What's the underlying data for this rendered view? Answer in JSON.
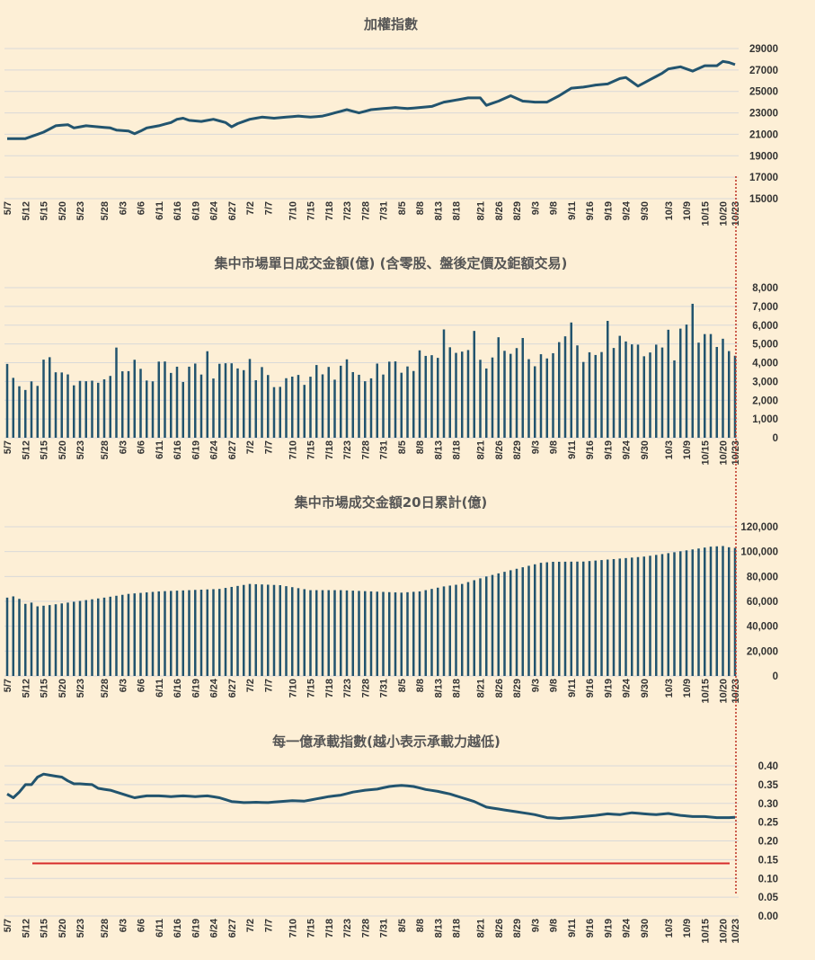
{
  "colors": {
    "background": "#FDEFD6",
    "series": "#22546E",
    "reference_line": "#D62B2B",
    "vertical_marker": "#C0392B",
    "grid": "#D9D9D9"
  },
  "x_labels": [
    "5/7",
    "5/12",
    "5/15",
    "5/20",
    "5/23",
    "5/28",
    "6/3",
    "6/6",
    "6/11",
    "6/16",
    "6/19",
    "6/24",
    "6/27",
    "7/2",
    "7/7",
    "7/10",
    "7/15",
    "7/18",
    "7/23",
    "7/28",
    "7/31",
    "8/5",
    "8/8",
    "8/13",
    "8/18",
    "8/21",
    "8/26",
    "8/29",
    "9/3",
    "9/8",
    "9/11",
    "9/16",
    "9/19",
    "9/24",
    "9/30",
    "10/3",
    "10/9",
    "10/15",
    "10/20",
    "10/23"
  ],
  "chart_data": [
    {
      "type": "line",
      "title": "加權指數",
      "ylim": [
        15000,
        29000
      ],
      "y_ticks": [
        "15000",
        "17000",
        "19000",
        "21000",
        "23000",
        "25000",
        "27000",
        "29000"
      ],
      "grid": true,
      "anchors": [
        [
          0,
          20600
        ],
        [
          3,
          20600
        ],
        [
          6,
          21200
        ],
        [
          8,
          21800
        ],
        [
          10,
          21900
        ],
        [
          11,
          21600
        ],
        [
          13,
          21800
        ],
        [
          15,
          21700
        ],
        [
          17,
          21600
        ],
        [
          18,
          21400
        ],
        [
          19,
          21350
        ],
        [
          20,
          21300
        ],
        [
          21,
          21050
        ],
        [
          22,
          21300
        ],
        [
          23,
          21600
        ],
        [
          25,
          21800
        ],
        [
          27,
          22100
        ],
        [
          28,
          22400
        ],
        [
          29,
          22500
        ],
        [
          30,
          22300
        ],
        [
          32,
          22200
        ],
        [
          34,
          22400
        ],
        [
          36,
          22100
        ],
        [
          37,
          21700
        ],
        [
          38,
          22000
        ],
        [
          40,
          22400
        ],
        [
          42,
          22600
        ],
        [
          44,
          22500
        ],
        [
          46,
          22600
        ],
        [
          48,
          22700
        ],
        [
          50,
          22600
        ],
        [
          52,
          22700
        ],
        [
          54,
          23000
        ],
        [
          56,
          23300
        ],
        [
          58,
          23000
        ],
        [
          60,
          23300
        ],
        [
          62,
          23400
        ],
        [
          64,
          23500
        ],
        [
          66,
          23400
        ],
        [
          68,
          23500
        ],
        [
          70,
          23600
        ],
        [
          72,
          24000
        ],
        [
          74,
          24200
        ],
        [
          76,
          24400
        ],
        [
          78,
          24400
        ],
        [
          79,
          23700
        ],
        [
          81,
          24100
        ],
        [
          83,
          24600
        ],
        [
          85,
          24100
        ],
        [
          87,
          24000
        ],
        [
          89,
          24000
        ],
        [
          91,
          24600
        ],
        [
          93,
          25300
        ],
        [
          95,
          25400
        ],
        [
          97,
          25600
        ],
        [
          99,
          25700
        ],
        [
          101,
          26200
        ],
        [
          102,
          26300
        ],
        [
          104,
          25500
        ],
        [
          106,
          26100
        ],
        [
          108,
          26700
        ],
        [
          109,
          27100
        ],
        [
          111,
          27300
        ],
        [
          113,
          26900
        ],
        [
          115,
          27400
        ],
        [
          117,
          27400
        ],
        [
          118,
          27800
        ],
        [
          119,
          27700
        ],
        [
          120,
          27500
        ]
      ]
    },
    {
      "type": "bar",
      "title": "集中市場單日成交金額(億) (含零股、盤後定價及鉅額交易)",
      "ylim": [
        0,
        8000
      ],
      "y_ticks": [
        "0",
        "1,000",
        "2,000",
        "3,000",
        "4,000",
        "5,000",
        "6,000",
        "7,000",
        "8,000"
      ],
      "grid": true,
      "values": [
        3935,
        3192,
        2745,
        2546,
        3004,
        2764,
        4163,
        4293,
        3488,
        3479,
        3376,
        2793,
        3029,
        3012,
        3041,
        2930,
        3114,
        3295,
        4807,
        3541,
        3550,
        4156,
        3672,
        3050,
        3006,
        4059,
        4064,
        3455,
        3787,
        2973,
        3788,
        3954,
        3369,
        4611,
        3157,
        3942,
        3970,
        3967,
        3695,
        3603,
        4199,
        3065,
        3767,
        3343,
        2697,
        2713,
        3173,
        3258,
        3347,
        2818,
        3254,
        3876,
        3378,
        3774,
        3095,
        3839,
        4179,
        3499,
        3357,
        3011,
        3166,
        3953,
        3369,
        4056,
        4069,
        3465,
        3800,
        3558,
        4658,
        4363,
        4400,
        4258,
        5773,
        4822,
        4524,
        4591,
        4674,
        5694,
        4155,
        3691,
        4278,
        5356,
        4633,
        4473,
        4779,
        5316,
        4189,
        3809,
        4452,
        4227,
        4505,
        5096,
        5405,
        6143,
        4922,
        4039,
        4555,
        4411,
        4568,
        6229,
        4785,
        5432,
        5132,
        4976,
        4963,
        4342,
        4545,
        4962,
        4810,
        5756,
        4122,
        5816,
        6032,
        7140,
        5069,
        5525,
        5527,
        4839,
        5277,
        4619,
        4371
      ]
    },
    {
      "type": "bar",
      "title": "集中市場成交金額20日累計(億)",
      "ylim": [
        0,
        120000
      ],
      "y_ticks": [
        "0",
        "20,000",
        "40,000",
        "60,000",
        "80,000",
        "100,000",
        "120,000"
      ],
      "grid": true,
      "anchors": [
        [
          0,
          63000
        ],
        [
          1,
          64000
        ],
        [
          2,
          62000
        ],
        [
          3,
          58000
        ],
        [
          4,
          59000
        ],
        [
          5,
          56000
        ],
        [
          7,
          57000
        ],
        [
          10,
          59000
        ],
        [
          13,
          61000
        ],
        [
          16,
          63000
        ],
        [
          20,
          66000
        ],
        [
          25,
          68000
        ],
        [
          30,
          69000
        ],
        [
          35,
          70000
        ],
        [
          40,
          74000
        ],
        [
          45,
          73000
        ],
        [
          50,
          69000
        ],
        [
          55,
          69000
        ],
        [
          60,
          68000
        ],
        [
          65,
          67000
        ],
        [
          68,
          68000
        ],
        [
          70,
          70000
        ],
        [
          72,
          72000
        ],
        [
          75,
          74000
        ],
        [
          79,
          80000
        ],
        [
          83,
          85000
        ],
        [
          88,
          91000
        ],
        [
          90,
          91800
        ],
        [
          95,
          92000
        ],
        [
          100,
          94000
        ],
        [
          105,
          96000
        ],
        [
          108,
          98000
        ],
        [
          112,
          101000
        ],
        [
          116,
          104000
        ],
        [
          118,
          104500
        ],
        [
          119,
          103500
        ],
        [
          120,
          103000
        ]
      ]
    },
    {
      "type": "line",
      "title": "每一億承載指數(越小表示承載力越低)",
      "ylim": [
        0,
        0.4
      ],
      "y_ticks": [
        "0.00",
        "0.05",
        "0.10",
        "0.15",
        "0.20",
        "0.25",
        "0.30",
        "0.35",
        "0.40"
      ],
      "grid": true,
      "reference_line": 0.14,
      "anchors": [
        [
          0,
          0.325
        ],
        [
          1,
          0.315
        ],
        [
          2,
          0.33
        ],
        [
          3,
          0.35
        ],
        [
          4,
          0.35
        ],
        [
          5,
          0.37
        ],
        [
          6,
          0.378
        ],
        [
          7,
          0.375
        ],
        [
          9,
          0.37
        ],
        [
          10,
          0.36
        ],
        [
          11,
          0.352
        ],
        [
          12,
          0.352
        ],
        [
          14,
          0.35
        ],
        [
          15,
          0.34
        ],
        [
          17,
          0.335
        ],
        [
          19,
          0.325
        ],
        [
          21,
          0.315
        ],
        [
          23,
          0.32
        ],
        [
          25,
          0.32
        ],
        [
          27,
          0.318
        ],
        [
          29,
          0.32
        ],
        [
          31,
          0.318
        ],
        [
          33,
          0.32
        ],
        [
          35,
          0.315
        ],
        [
          37,
          0.305
        ],
        [
          39,
          0.302
        ],
        [
          41,
          0.303
        ],
        [
          43,
          0.302
        ],
        [
          45,
          0.305
        ],
        [
          47,
          0.307
        ],
        [
          49,
          0.306
        ],
        [
          51,
          0.312
        ],
        [
          53,
          0.318
        ],
        [
          55,
          0.322
        ],
        [
          57,
          0.33
        ],
        [
          59,
          0.335
        ],
        [
          61,
          0.338
        ],
        [
          63,
          0.345
        ],
        [
          65,
          0.348
        ],
        [
          67,
          0.345
        ],
        [
          69,
          0.337
        ],
        [
          71,
          0.332
        ],
        [
          73,
          0.325
        ],
        [
          75,
          0.315
        ],
        [
          77,
          0.305
        ],
        [
          79,
          0.29
        ],
        [
          81,
          0.285
        ],
        [
          83,
          0.28
        ],
        [
          85,
          0.275
        ],
        [
          87,
          0.27
        ],
        [
          89,
          0.262
        ],
        [
          91,
          0.26
        ],
        [
          93,
          0.262
        ],
        [
          95,
          0.265
        ],
        [
          97,
          0.268
        ],
        [
          99,
          0.272
        ],
        [
          101,
          0.27
        ],
        [
          103,
          0.275
        ],
        [
          105,
          0.272
        ],
        [
          107,
          0.27
        ],
        [
          109,
          0.273
        ],
        [
          111,
          0.268
        ],
        [
          113,
          0.265
        ],
        [
          115,
          0.265
        ],
        [
          117,
          0.262
        ],
        [
          119,
          0.262
        ],
        [
          120,
          0.263
        ]
      ]
    }
  ]
}
